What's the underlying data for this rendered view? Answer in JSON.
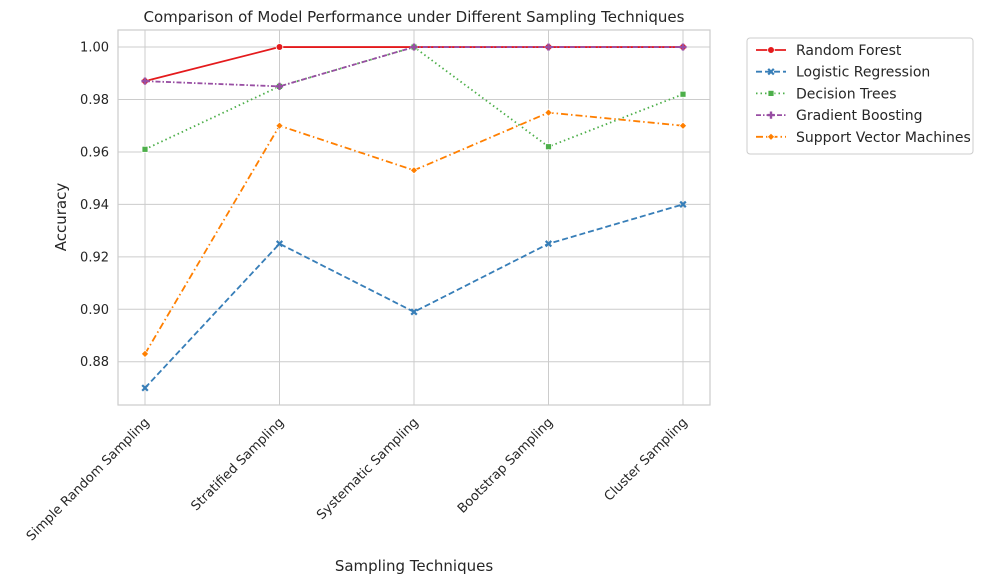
{
  "chart_data": {
    "type": "line",
    "title": "Comparison of Model Performance under Different Sampling Techniques",
    "xlabel": "Sampling Techniques",
    "ylabel": "Accuracy",
    "categories": [
      "Simple Random Sampling",
      "Stratified Sampling",
      "Systematic Sampling",
      "Bootstrap Sampling",
      "Cluster Sampling"
    ],
    "ylim": [
      0.8635,
      1.0065
    ],
    "yticks": [
      "0.88",
      "0.90",
      "0.92",
      "0.94",
      "0.96",
      "0.98",
      "1.00"
    ],
    "grid": true,
    "legend_position": "outside-top-right",
    "series": [
      {
        "name": "Random Forest",
        "values": [
          0.987,
          1.0,
          1.0,
          1.0,
          1.0
        ],
        "color": "#e41a1c",
        "dash": "solid",
        "marker": "circle"
      },
      {
        "name": "Logistic Regression",
        "values": [
          0.87,
          0.925,
          0.899,
          0.925,
          0.94
        ],
        "color": "#377eb8",
        "dash": "dashed",
        "marker": "x"
      },
      {
        "name": "Decision Trees",
        "values": [
          0.961,
          0.985,
          1.0,
          0.962,
          0.982
        ],
        "color": "#4daf4a",
        "dash": "dotted",
        "marker": "square"
      },
      {
        "name": "Gradient Boosting",
        "values": [
          0.987,
          0.985,
          1.0,
          1.0,
          1.0
        ],
        "color": "#984ea3",
        "dash": "dashdot-dense",
        "marker": "plus"
      },
      {
        "name": "Support Vector Machines",
        "values": [
          0.883,
          0.97,
          0.953,
          0.975,
          0.97
        ],
        "color": "#ff7f00",
        "dash": "dashdot",
        "marker": "diamond"
      }
    ]
  }
}
